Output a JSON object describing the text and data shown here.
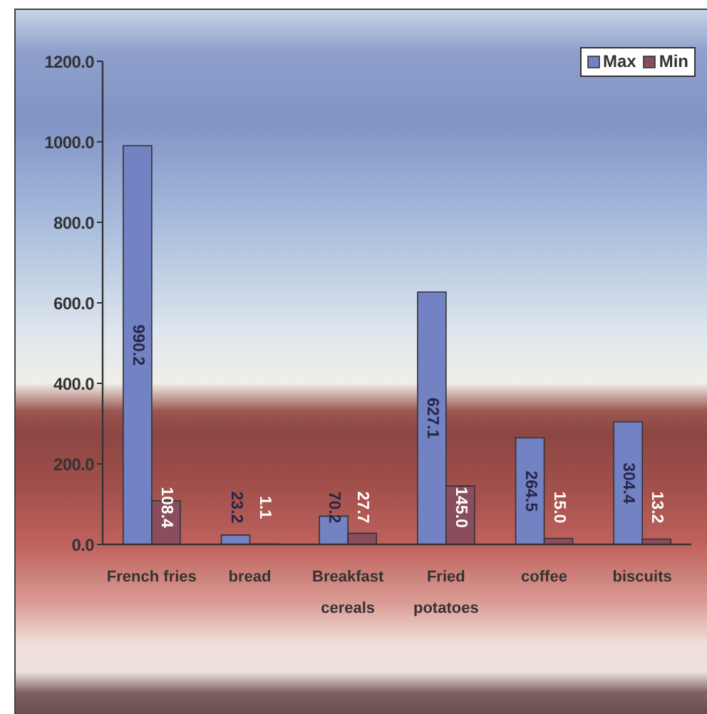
{
  "chart_data": {
    "type": "bar",
    "categories": [
      "French fries",
      "bread",
      "Breakfast cereals",
      "Fried potatoes",
      "coffee",
      "biscuits"
    ],
    "series": [
      {
        "name": "Max",
        "color": "#7282c2",
        "values": [
          990.2,
          23.2,
          70.2,
          627.1,
          264.5,
          304.4
        ],
        "value_labels": [
          "990.2",
          "23.2",
          "70.2",
          "627.1",
          "264.5",
          "304.4"
        ]
      },
      {
        "name": "Min",
        "color": "#8a4d5e",
        "values": [
          108.4,
          1.1,
          27.7,
          145.0,
          15.0,
          13.2
        ],
        "value_labels": [
          "108.4",
          "1.1",
          "27.7",
          "145.0",
          "15.0",
          "13.2"
        ]
      }
    ],
    "ylim": [
      0,
      1200
    ],
    "yticks": [
      {
        "value": 0,
        "label": "0.0"
      },
      {
        "value": 200,
        "label": "200.0"
      },
      {
        "value": 400,
        "label": "400.0"
      },
      {
        "value": 600,
        "label": "600.0"
      },
      {
        "value": 800,
        "label": "800.0"
      },
      {
        "value": 1000,
        "label": "1000.0"
      },
      {
        "value": 1200,
        "label": "1200.0"
      }
    ],
    "legend": "top right"
  }
}
